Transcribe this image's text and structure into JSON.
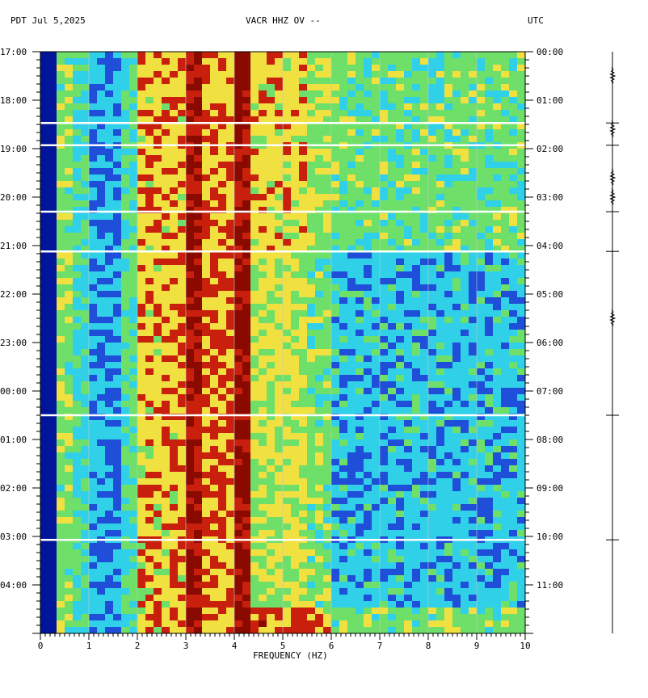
{
  "header": {
    "left": "PDT  Jul 5,2025",
    "center": "VACR HHZ OV --",
    "right": "UTC"
  },
  "chart_data": {
    "type": "heatmap",
    "title": "VACR HHZ OV --",
    "xlabel": "FREQUENCY (HZ)",
    "x_ticks": [
      "0",
      "1",
      "2",
      "3",
      "4",
      "5",
      "6",
      "7",
      "8",
      "9",
      "10"
    ],
    "xlim": [
      0,
      10
    ],
    "y_ticks_left": [
      "17:00",
      "18:00",
      "19:00",
      "20:00",
      "21:00",
      "22:00",
      "23:00",
      "00:00",
      "01:00",
      "02:00",
      "03:00",
      "04:00"
    ],
    "y_ticks_right": [
      "00:00",
      "01:00",
      "02:00",
      "03:00",
      "04:00",
      "05:00",
      "06:00",
      "07:00",
      "08:00",
      "09:00",
      "10:00",
      "11:00"
    ],
    "y_range_hours": [
      0,
      12
    ],
    "gap_lines_hours": [
      1.47,
      1.93,
      3.3,
      4.12,
      7.5,
      10.07
    ],
    "seismogram_event_hours": [
      0.5,
      1.6,
      2.6,
      3.0,
      5.5
    ],
    "colors": {
      "low": "#00159a",
      "blue": "#1f4fd8",
      "cyan": "#2fd0e8",
      "green": "#6ee06a",
      "yellow": "#f0e040",
      "red": "#c8200c",
      "dark_red": "#8a0a00"
    }
  }
}
